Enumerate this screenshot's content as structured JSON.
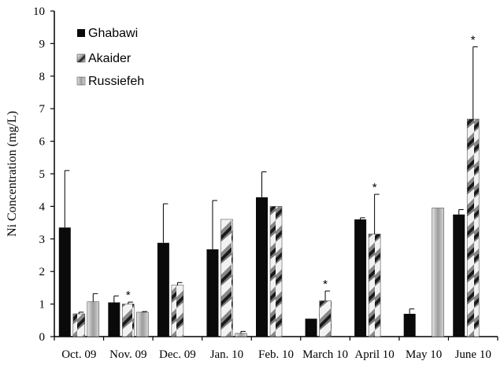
{
  "chart_data": {
    "type": "bar",
    "title": "",
    "ylabel": "Ni Concentration (mg/L)",
    "xlabel": "",
    "ylim": [
      0,
      10
    ],
    "yticks": [
      0,
      1,
      2,
      3,
      4,
      5,
      6,
      7,
      8,
      9,
      10
    ],
    "categories": [
      "Oct. 09",
      "Nov. 09",
      "Dec. 09",
      "Jan. 10",
      "Feb. 10",
      "March 10",
      "April 10",
      "May 10",
      "June 10"
    ],
    "legend_position": "top-left",
    "significance_marker": "*",
    "significant_categories": [
      "Nov. 09",
      "March 10",
      "April 10",
      "June 10"
    ],
    "series": [
      {
        "name": "Ghabawi",
        "fill": "solid-black",
        "values": [
          3.35,
          1.05,
          2.88,
          2.68,
          4.28,
          0.55,
          3.6,
          0.7,
          3.75
        ],
        "errors": [
          1.75,
          0.2,
          1.2,
          1.5,
          0.78,
          0.0,
          0.05,
          0.15,
          0.15
        ]
      },
      {
        "name": "Akaider",
        "fill": "diagonal-hatch",
        "values": [
          0.7,
          1.0,
          1.58,
          3.6,
          4.0,
          1.1,
          3.15,
          null,
          6.68
        ],
        "errors": [
          0.05,
          0.06,
          0.08,
          0.0,
          0.0,
          0.3,
          1.22,
          null,
          2.22
        ]
      },
      {
        "name": "Russiefeh",
        "fill": "light-grey",
        "values": [
          1.07,
          0.75,
          null,
          0.1,
          null,
          null,
          null,
          3.95,
          null
        ],
        "errors": [
          0.25,
          0.02,
          null,
          0.06,
          null,
          null,
          null,
          0.0,
          null
        ]
      }
    ]
  },
  "colors": {
    "ghabawi": "#0a0a0a",
    "akaider_dark": "#111111",
    "akaider_light": "#f4f4f4",
    "russiefeh": "#c8c8c8"
  }
}
